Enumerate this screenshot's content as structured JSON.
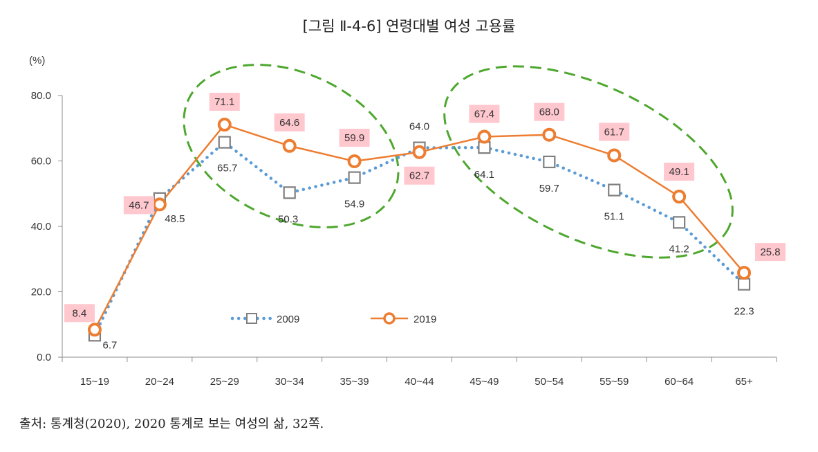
{
  "title": "[그림 Ⅱ-4-6] 연령대별 여성 고용률",
  "source": "출처: 통계청(2020), 2020 통계로 보는 여성의 삶, 32쪽.",
  "colors": {
    "series_2009": "#5b9bd5",
    "series_2019": "#ed7d31",
    "marker_2009": "#7f7f7f",
    "label_box_2019": "#ffc7ce",
    "ellipse": "#4ea72e",
    "axis": "#8c8c8c"
  },
  "chart_data": {
    "type": "line",
    "ylabel": "(%)",
    "ylim": [
      0,
      80
    ],
    "yticks": [
      "0.0",
      "20.0",
      "40.0",
      "60.0",
      "80.0"
    ],
    "categories": [
      "15~19",
      "20~24",
      "25~29",
      "30~34",
      "35~39",
      "40~44",
      "45~49",
      "50~54",
      "55~59",
      "60~64",
      "65+"
    ],
    "series": [
      {
        "name": "2009",
        "style": "dotted, square markers",
        "values": [
          6.7,
          48.5,
          65.7,
          50.3,
          54.9,
          64.0,
          64.1,
          59.7,
          51.1,
          41.2,
          22.3
        ],
        "labels": [
          "6.7",
          "48.5",
          "65.7",
          "50.3",
          "54.9",
          "64.0",
          "64.1",
          "59.7",
          "51.1",
          "41.2",
          "22.3"
        ]
      },
      {
        "name": "2019",
        "style": "solid, circle markers, shaded labels",
        "values": [
          8.4,
          46.7,
          71.1,
          64.6,
          59.9,
          62.7,
          67.4,
          68.0,
          61.7,
          49.1,
          25.8
        ],
        "labels": [
          "8.4",
          "46.7",
          "71.1",
          "64.6",
          "59.9",
          "62.7",
          "67.4",
          "68.0",
          "61.7",
          "49.1",
          "25.8"
        ]
      }
    ],
    "annotations": [
      "dashed green ellipse around ages 25~29 to 35~39",
      "dashed green ellipse around ages 45~49 to 60~64"
    ],
    "legend_position": "inside, lower-left"
  }
}
